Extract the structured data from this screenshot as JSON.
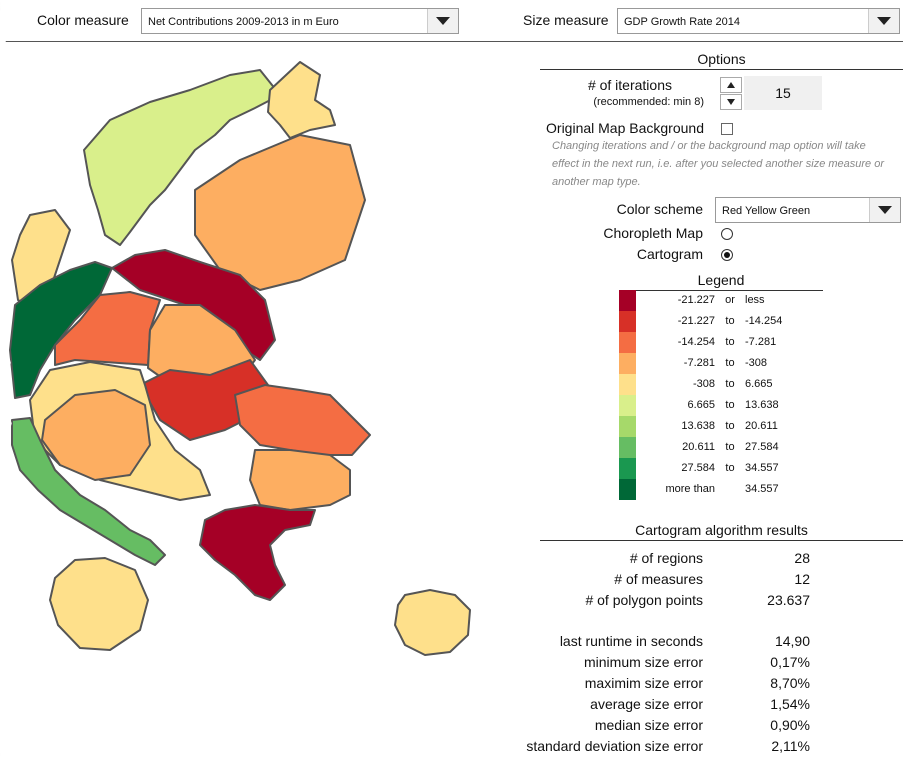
{
  "topbar": {
    "color_measure_label": "Color measure",
    "color_measure_value": "Net Contributions 2009-2013 in m Euro",
    "size_measure_label": "Size measure",
    "size_measure_value": "GDP Growth Rate 2014"
  },
  "options": {
    "header": "Options",
    "iterations_label": "# of iterations",
    "iterations_hint": "(recommended: min 8)",
    "iterations_value": "15",
    "original_map_label": "Original Map Background",
    "original_map_checked": false,
    "note": "Changing iterations and / or the background map option will take effect in the next run, i.e. after you selected another size measure or another map type.",
    "color_scheme_label": "Color scheme",
    "color_scheme_value": "Red Yellow Green",
    "choropleth_label": "Choropleth Map",
    "cartogram_label": "Cartogram",
    "selected_map_type": "Cartogram"
  },
  "legend": {
    "header": "Legend",
    "rows": [
      {
        "color": "#a50026",
        "from": "-21.227",
        "sep": "or",
        "to": "less"
      },
      {
        "color": "#d73027",
        "from": "-21.227",
        "sep": "to",
        "to": "-14.254"
      },
      {
        "color": "#f46d43",
        "from": "-14.254",
        "sep": "to",
        "to": "-7.281"
      },
      {
        "color": "#fdae61",
        "from": "-7.281",
        "sep": "to",
        "to": "-308"
      },
      {
        "color": "#fee08b",
        "from": "-308",
        "sep": "to",
        "to": "6.665"
      },
      {
        "color": "#d9ef8b",
        "from": "6.665",
        "sep": "to",
        "to": "13.638"
      },
      {
        "color": "#a6d96a",
        "from": "13.638",
        "sep": "to",
        "to": "20.611"
      },
      {
        "color": "#66bd63",
        "from": "20.611",
        "sep": "to",
        "to": "27.584"
      },
      {
        "color": "#1a9850",
        "from": "27.584",
        "sep": "to",
        "to": "34.557"
      },
      {
        "color": "#006837",
        "from": "more than",
        "sep": "",
        "to": "34.557"
      }
    ]
  },
  "results": {
    "header": "Cartogram algorithm results",
    "rows": [
      {
        "label": "# of regions",
        "value": "28"
      },
      {
        "label": "# of measures",
        "value": "12"
      },
      {
        "label": "# of polygon points",
        "value": "23.637"
      },
      {
        "label": "last runtime in seconds",
        "value": "14,90"
      },
      {
        "label": "minimum size error",
        "value": "0,17%"
      },
      {
        "label": "maximim size error",
        "value": "8,70%"
      },
      {
        "label": "average size error",
        "value": "1,54%"
      },
      {
        "label": "median size error",
        "value": "0,90%"
      },
      {
        "label": "standard deviation size error",
        "value": "2,11%"
      }
    ]
  }
}
